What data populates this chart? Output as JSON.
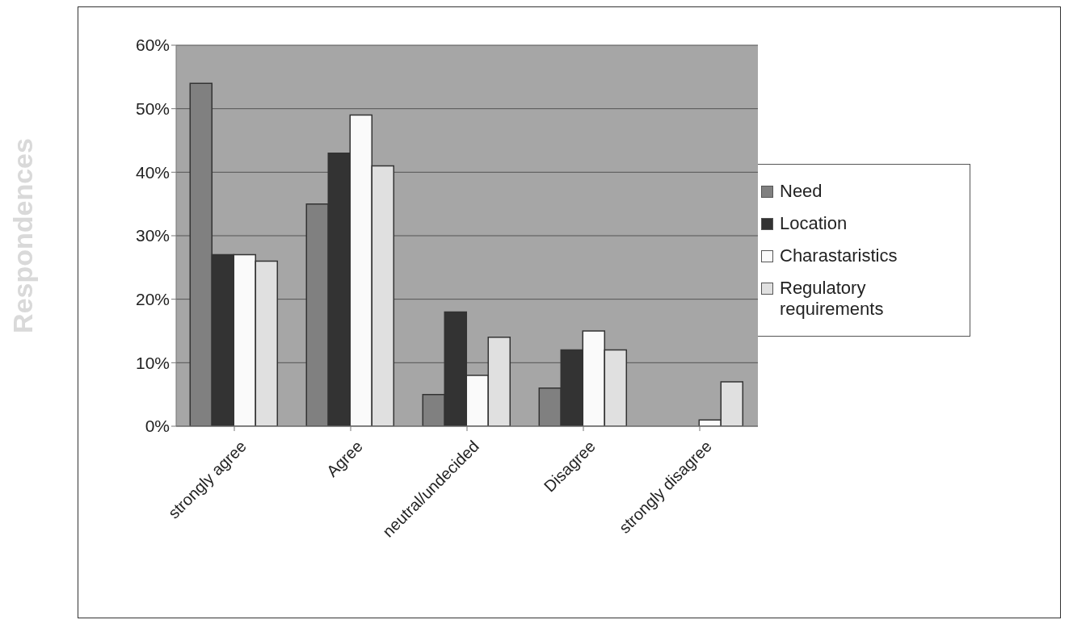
{
  "chart_data": {
    "type": "bar",
    "ylabel": "Respondences",
    "categories": [
      "strongly agree",
      "Agree",
      "neutral/undecided",
      "Disagree",
      "strongly disagree"
    ],
    "series": [
      {
        "name": "Need",
        "color": "#808080",
        "values": [
          54,
          35,
          5,
          6,
          0
        ]
      },
      {
        "name": "Location",
        "color": "#333333",
        "values": [
          27,
          43,
          18,
          12,
          0
        ]
      },
      {
        "name": "Charastaristics",
        "color": "#fafafa",
        "values": [
          27,
          49,
          8,
          15,
          1
        ]
      },
      {
        "name": "Regulatory requirements",
        "color": "#e0e0e0",
        "values": [
          26,
          41,
          14,
          12,
          7
        ]
      }
    ],
    "ylim": [
      0,
      60
    ],
    "yticks": [
      {
        "value": 0,
        "label": "0%"
      },
      {
        "value": 10,
        "label": "10%"
      },
      {
        "value": 20,
        "label": "20%"
      },
      {
        "value": 30,
        "label": "30%"
      },
      {
        "value": 40,
        "label": "40%"
      },
      {
        "value": 50,
        "label": "50%"
      },
      {
        "value": 60,
        "label": "60%"
      }
    ],
    "grid": "y",
    "legend": "right"
  }
}
